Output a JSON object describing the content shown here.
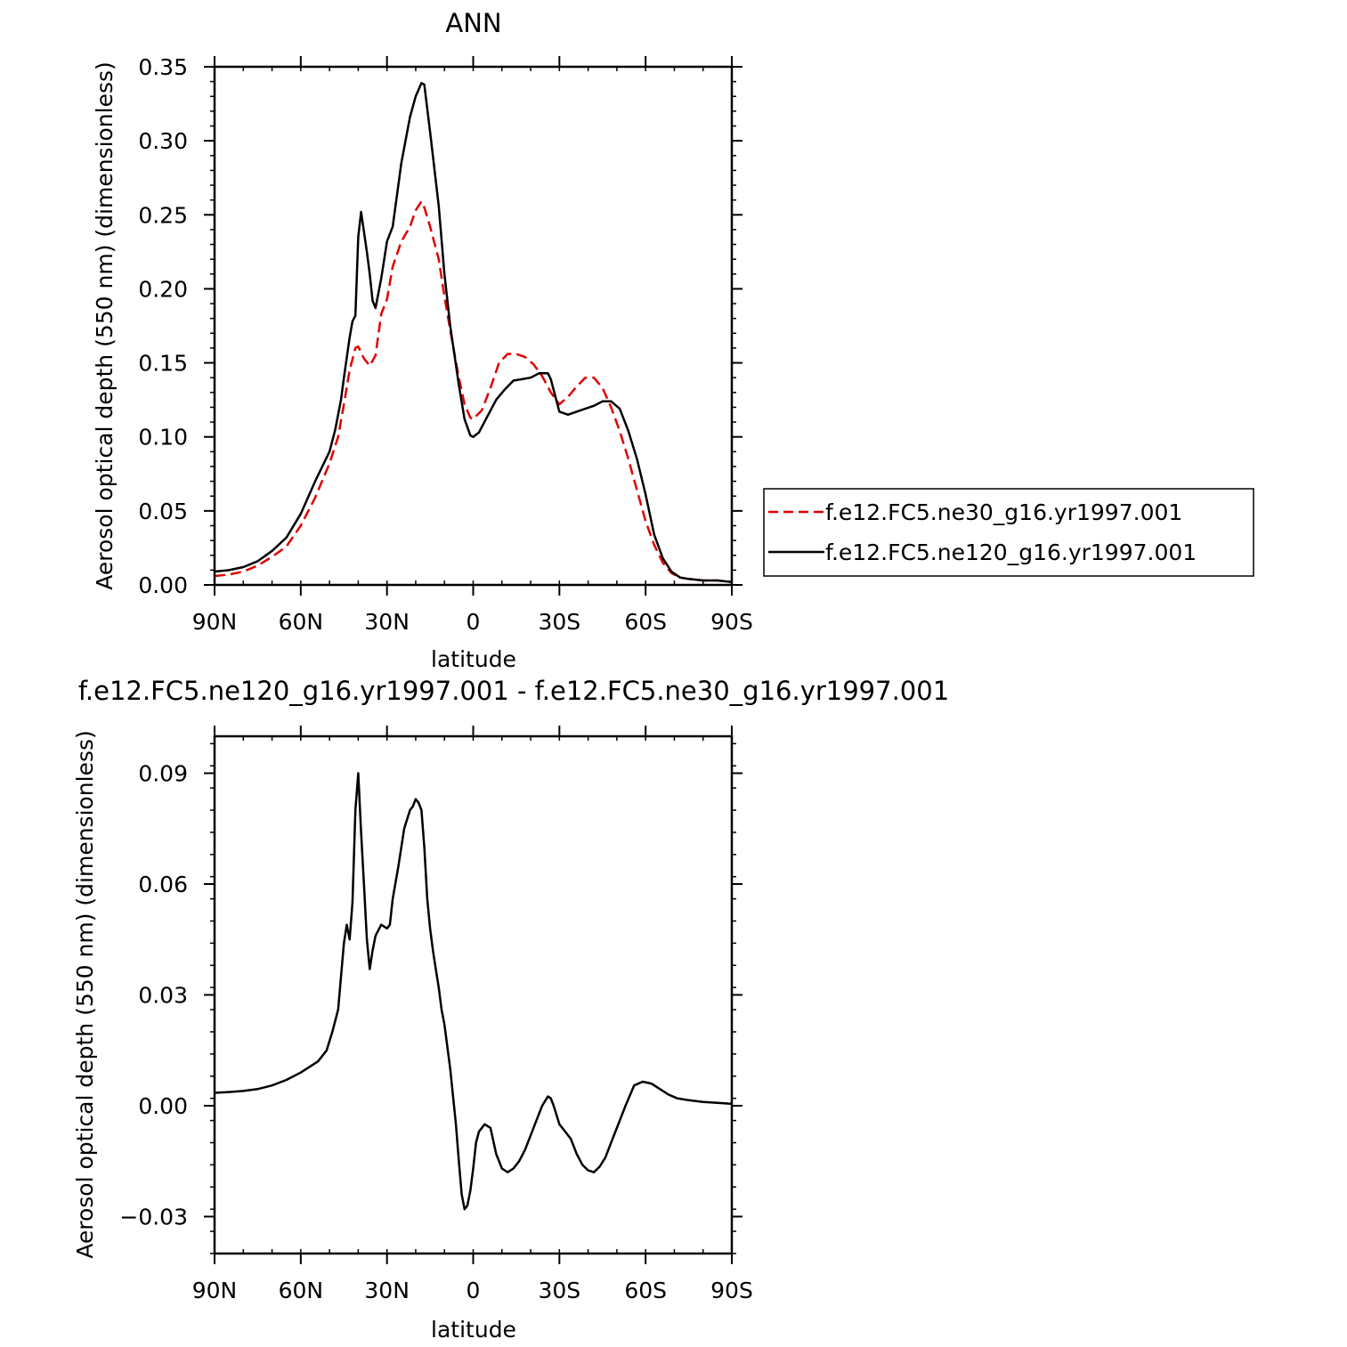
{
  "chart_data": [
    {
      "type": "line",
      "title": "ANN",
      "xlabel": "latitude",
      "ylabel": "Aerosol optical depth (550 nm) (dimensionless)",
      "xlim": [
        90,
        -90
      ],
      "ylim": [
        0,
        0.35
      ],
      "x_ticks": [
        90,
        60,
        30,
        0,
        -30,
        -60,
        -90
      ],
      "x_tick_labels": [
        "90N",
        "60N",
        "30N",
        "0",
        "30S",
        "60S",
        "90S"
      ],
      "y_ticks": [
        0,
        0.05,
        0.1,
        0.15,
        0.2,
        0.25,
        0.3,
        0.35
      ],
      "y_tick_labels": [
        "0.00",
        "0.05",
        "0.10",
        "0.15",
        "0.20",
        "0.25",
        "0.30",
        "0.35"
      ],
      "grid": false,
      "legend_position": "right",
      "series": [
        {
          "name": "f.e12.FC5.ne30_g16.yr1997.001",
          "color": "#e00000",
          "dash": "dashed",
          "x": [
            90,
            85,
            80,
            75,
            70,
            65,
            60,
            55,
            50,
            47,
            45,
            43,
            41,
            40,
            38,
            36,
            34,
            32,
            30,
            28,
            25,
            22,
            20,
            18,
            17,
            15,
            12,
            10,
            8,
            5,
            3,
            1,
            0,
            -3,
            -6,
            -9,
            -12,
            -15,
            -18,
            -21,
            -24,
            -27,
            -30,
            -33,
            -36,
            -39,
            -42,
            -45,
            -48,
            -51,
            -54,
            -57,
            -60,
            -63,
            -66,
            -69,
            -72,
            -75,
            -80,
            -85,
            -90
          ],
          "y": [
            0.006,
            0.007,
            0.009,
            0.013,
            0.019,
            0.026,
            0.04,
            0.059,
            0.082,
            0.1,
            0.122,
            0.145,
            0.16,
            0.161,
            0.153,
            0.148,
            0.155,
            0.183,
            0.193,
            0.215,
            0.232,
            0.242,
            0.253,
            0.259,
            0.255,
            0.242,
            0.22,
            0.195,
            0.172,
            0.14,
            0.122,
            0.113,
            0.112,
            0.118,
            0.133,
            0.15,
            0.156,
            0.156,
            0.154,
            0.149,
            0.141,
            0.13,
            0.122,
            0.127,
            0.134,
            0.14,
            0.14,
            0.133,
            0.12,
            0.104,
            0.085,
            0.064,
            0.043,
            0.027,
            0.015,
            0.008,
            0.005,
            0.004,
            0.003,
            0.003,
            0.002
          ]
        },
        {
          "name": "f.e12.FC5.ne120_g16.yr1997.001",
          "color": "#000000",
          "dash": "solid",
          "x": [
            90,
            85,
            80,
            75,
            70,
            65,
            60,
            55,
            50,
            48,
            46,
            45,
            43,
            42,
            41,
            40,
            39,
            37,
            36,
            35,
            34,
            32,
            30,
            28,
            25,
            22,
            20,
            18,
            17,
            15,
            12,
            10,
            8,
            5,
            3,
            1,
            0,
            -2,
            -5,
            -8,
            -11,
            -14,
            -17,
            -20,
            -23,
            -26,
            -27,
            -30,
            -33,
            -36,
            -39,
            -42,
            -45,
            -48,
            -51,
            -54,
            -57,
            -60,
            -63,
            -66,
            -69,
            -72,
            -75,
            -80,
            -85,
            -90
          ],
          "y": [
            0.009,
            0.01,
            0.012,
            0.016,
            0.023,
            0.032,
            0.048,
            0.07,
            0.09,
            0.105,
            0.125,
            0.14,
            0.167,
            0.178,
            0.182,
            0.235,
            0.252,
            0.225,
            0.21,
            0.192,
            0.187,
            0.207,
            0.232,
            0.242,
            0.285,
            0.316,
            0.33,
            0.339,
            0.338,
            0.306,
            0.256,
            0.21,
            0.175,
            0.135,
            0.112,
            0.101,
            0.1,
            0.103,
            0.114,
            0.125,
            0.132,
            0.138,
            0.139,
            0.14,
            0.143,
            0.143,
            0.139,
            0.117,
            0.115,
            0.117,
            0.119,
            0.121,
            0.124,
            0.124,
            0.119,
            0.104,
            0.085,
            0.061,
            0.034,
            0.018,
            0.009,
            0.005,
            0.004,
            0.003,
            0.003,
            0.002
          ]
        }
      ]
    },
    {
      "type": "line",
      "title": "f.e12.FC5.ne120_g16.yr1997.001 - f.e12.FC5.ne30_g16.yr1997.001",
      "xlabel": "latitude",
      "ylabel": "Aerosol optical depth (550 nm) (dimensionless)",
      "xlim": [
        90,
        -90
      ],
      "ylim": [
        -0.04,
        0.1
      ],
      "x_ticks": [
        90,
        60,
        30,
        0,
        -30,
        -60,
        -90
      ],
      "x_tick_labels": [
        "90N",
        "60N",
        "30N",
        "0",
        "30S",
        "60S",
        "90S"
      ],
      "y_ticks": [
        -0.03,
        0,
        0.03,
        0.06,
        0.09
      ],
      "y_tick_labels": [
        "−0.03",
        "0.00",
        "0.03",
        "0.06",
        "0.09"
      ],
      "grid": false,
      "series": [
        {
          "color": "#000000",
          "dash": "solid",
          "x": [
            90,
            85,
            80,
            75,
            70,
            65,
            60,
            57,
            54,
            51,
            49,
            47,
            45,
            44,
            43,
            42,
            41,
            40,
            39,
            38,
            37,
            36,
            35,
            34,
            32,
            30,
            29,
            28,
            26,
            24,
            22,
            21,
            20,
            19,
            18,
            17,
            16,
            15,
            14,
            13,
            12,
            11,
            10,
            8,
            6,
            5,
            4,
            3,
            2,
            1,
            0,
            -1,
            -2,
            -4,
            -6,
            -8,
            -10,
            -12,
            -14,
            -16,
            -18,
            -20,
            -22,
            -24,
            -26,
            -27,
            -28,
            -30,
            -32,
            -34,
            -36,
            -38,
            -40,
            -42,
            -44,
            -46,
            -48,
            -50,
            -53,
            -56,
            -59,
            -62,
            -65,
            -68,
            -71,
            -75,
            -80,
            -85,
            -90
          ],
          "y": [
            0.0035,
            0.0037,
            0.004,
            0.0045,
            0.0055,
            0.007,
            0.009,
            0.0105,
            0.012,
            0.015,
            0.02,
            0.026,
            0.044,
            0.049,
            0.045,
            0.055,
            0.08,
            0.09,
            0.074,
            0.06,
            0.045,
            0.037,
            0.042,
            0.046,
            0.049,
            0.048,
            0.049,
            0.056,
            0.065,
            0.075,
            0.08,
            0.081,
            0.083,
            0.082,
            0.08,
            0.07,
            0.056,
            0.048,
            0.042,
            0.037,
            0.032,
            0.026,
            0.022,
            0.01,
            -0.005,
            -0.015,
            -0.024,
            -0.028,
            -0.027,
            -0.023,
            -0.017,
            -0.01,
            -0.007,
            -0.005,
            -0.006,
            -0.013,
            -0.017,
            -0.018,
            -0.017,
            -0.015,
            -0.012,
            -0.008,
            -0.004,
            0.0,
            0.0025,
            0.002,
            0.0,
            -0.005,
            -0.007,
            -0.009,
            -0.013,
            -0.016,
            -0.0175,
            -0.018,
            -0.0165,
            -0.014,
            -0.01,
            -0.006,
            0.0,
            0.0055,
            0.0065,
            0.006,
            0.0045,
            0.003,
            0.002,
            0.0015,
            0.001,
            0.0008,
            0.0005
          ]
        }
      ]
    }
  ]
}
